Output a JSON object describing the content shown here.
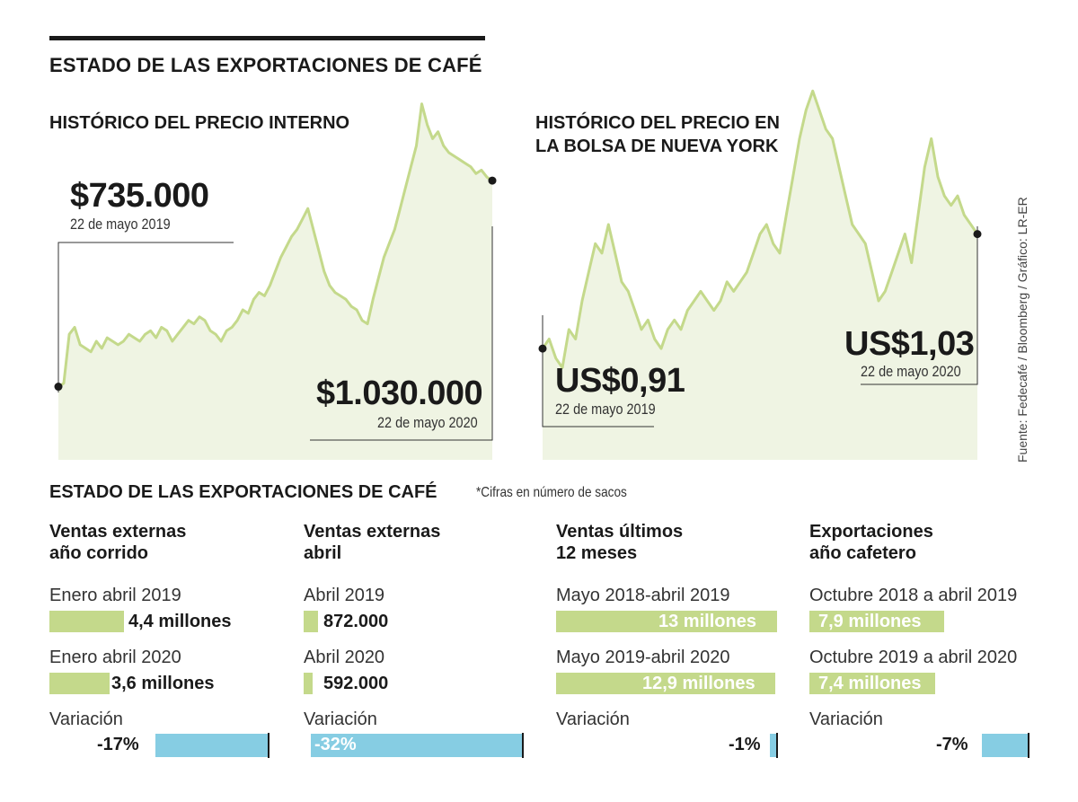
{
  "header": {
    "title": "ESTADO DE LAS EXPORTACIONES DE CAFÉ"
  },
  "chart_data": [
    {
      "type": "area",
      "title": "HISTÓRICO DEL PRECIO INTERNO",
      "xlabel": "",
      "ylabel": "",
      "start_label": {
        "value": "$735.000",
        "date": "22 de mayo 2019"
      },
      "end_label": {
        "value": "$1.030.000",
        "date": "22 de mayo 2020"
      },
      "ylim": [
        620000,
        1160000
      ],
      "y": [
        735000,
        740000,
        810000,
        820000,
        795000,
        790000,
        785000,
        800000,
        790000,
        805000,
        800000,
        795000,
        800000,
        810000,
        805000,
        800000,
        810000,
        815000,
        805000,
        820000,
        815000,
        800000,
        810000,
        820000,
        830000,
        825000,
        835000,
        830000,
        815000,
        810000,
        800000,
        815000,
        820000,
        830000,
        845000,
        840000,
        860000,
        870000,
        865000,
        880000,
        900000,
        920000,
        935000,
        950000,
        960000,
        975000,
        990000,
        960000,
        930000,
        900000,
        880000,
        870000,
        865000,
        860000,
        850000,
        845000,
        830000,
        825000,
        860000,
        890000,
        920000,
        940000,
        960000,
        990000,
        1020000,
        1050000,
        1080000,
        1140000,
        1110000,
        1090000,
        1100000,
        1080000,
        1070000,
        1065000,
        1060000,
        1055000,
        1050000,
        1040000,
        1045000,
        1035000,
        1030000
      ]
    },
    {
      "type": "area",
      "title": "HISTÓRICO DEL PRECIO EN LA BOLSA DE NUEVA YORK",
      "xlabel": "",
      "ylabel": "",
      "start_label": {
        "value": "US$0,91",
        "date": "22 de mayo 2019"
      },
      "end_label": {
        "value": "US$1,03",
        "date": "22 de mayo 2020"
      },
      "ylim": [
        0.8,
        1.2
      ],
      "y": [
        0.91,
        0.92,
        0.9,
        0.89,
        0.93,
        0.92,
        0.96,
        0.99,
        1.02,
        1.01,
        1.04,
        1.01,
        0.98,
        0.97,
        0.95,
        0.93,
        0.94,
        0.92,
        0.91,
        0.93,
        0.94,
        0.93,
        0.95,
        0.96,
        0.97,
        0.96,
        0.95,
        0.96,
        0.98,
        0.97,
        0.98,
        0.99,
        1.01,
        1.03,
        1.04,
        1.02,
        1.01,
        1.05,
        1.09,
        1.13,
        1.16,
        1.18,
        1.16,
        1.14,
        1.13,
        1.1,
        1.07,
        1.04,
        1.03,
        1.02,
        0.99,
        0.96,
        0.97,
        0.99,
        1.01,
        1.03,
        1.0,
        1.05,
        1.1,
        1.13,
        1.09,
        1.07,
        1.06,
        1.07,
        1.05,
        1.04,
        1.03
      ]
    }
  ],
  "source": "Fuente: Fedecafé / Bloomberg / Gráfico: LR-ER",
  "section2": {
    "title": "ESTADO DE LAS EXPORTACIONES DE CAFÉ",
    "note": "*Cifras en número de sacos"
  },
  "columns": [
    {
      "title": "Ventas externas\naño corrido",
      "row1_label": "Enero abril 2019",
      "row1_value": "4,4 millones",
      "row1_num": 4.4,
      "row2_label": "Enero abril 2020",
      "row2_value": "3,6 millones",
      "row2_num": 3.6,
      "var_label": "Variación",
      "var_value": "-17%",
      "var_num": -17
    },
    {
      "title": "Ventas externas\nabril",
      "row1_label": "Abril 2019",
      "row1_value": "872.000",
      "row1_num": 872000,
      "row2_label": "Abril 2020",
      "row2_value": "592.000",
      "row2_num": 592000,
      "var_label": "Variación",
      "var_value": "-32%",
      "var_num": -32
    },
    {
      "title": "Ventas últimos\n12 meses",
      "row1_label": "Mayo 2018-abril 2019",
      "row1_value": "13 millones",
      "row1_num": 13,
      "row2_label": "Mayo 2019-abril 2020",
      "row2_value": "12,9 millones",
      "row2_num": 12.9,
      "var_label": "Variación",
      "var_value": "-1%",
      "var_num": -1
    },
    {
      "title": "Exportaciones\naño cafetero",
      "row1_label": "Octubre 2018 a abril 2019",
      "row1_value": "7,9 millones",
      "row1_num": 7.9,
      "row2_label": "Octubre 2019 a abril 2020",
      "row2_value": "7,4 millones",
      "row2_num": 7.4,
      "var_label": "Variación",
      "var_value": "-7%",
      "var_num": -7
    }
  ],
  "colors": {
    "line": "#c4d98b",
    "area": "#eff4e3",
    "bar": "#c4d98b",
    "variation_bar": "#86cde3",
    "text": "#1a1a1a"
  }
}
